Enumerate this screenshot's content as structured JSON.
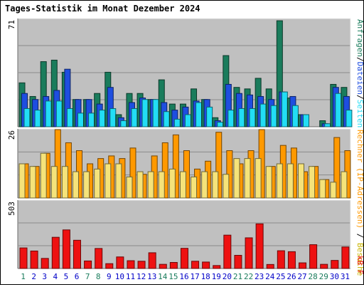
{
  "chart_data": [
    {
      "type": "bar",
      "title": "Tages-Statistik im Monat Dezember 2024",
      "ymax_label": "71",
      "ylabel_parts": [
        "Anfragen",
        "/",
        "Dateien",
        "/",
        "Seiten"
      ],
      "categories": [
        "1",
        "2",
        "3",
        "4",
        "5",
        "6",
        "7",
        "8",
        "9",
        "10",
        "11",
        "12",
        "13",
        "14",
        "15",
        "16",
        "17",
        "18",
        "19",
        "20",
        "21",
        "22",
        "23",
        "24",
        "25",
        "26",
        "27",
        "28",
        "29",
        "30",
        "31"
      ],
      "weekend_days": [
        "1",
        "7",
        "8",
        "14",
        "15",
        "21",
        "22",
        "28",
        "29"
      ],
      "ylim": [
        0,
        71
      ],
      "grid": true,
      "series": [
        {
          "name": "Anfragen",
          "color": "#1a7c5c",
          "values": [
            29,
            20,
            43,
            44,
            36,
            18,
            18,
            22,
            36,
            8,
            22,
            22,
            18,
            31,
            15,
            15,
            25,
            18,
            6,
            47,
            26,
            25,
            32,
            25,
            70,
            19,
            8,
            0,
            4,
            28,
            26
          ]
        },
        {
          "name": "Dateien",
          "color": "#1e4ee0",
          "values": [
            22,
            18,
            20,
            24,
            38,
            18,
            18,
            15,
            26,
            6,
            16,
            19,
            18,
            16,
            11,
            13,
            17,
            18,
            4,
            28,
            22,
            21,
            20,
            18,
            23,
            20,
            8,
            0,
            2,
            26,
            20
          ]
        },
        {
          "name": "Seiten",
          "color": "#22ddf5",
          "values": [
            12,
            11,
            17,
            17,
            12,
            9,
            9,
            11,
            12,
            4,
            12,
            18,
            18,
            10,
            5,
            8,
            16,
            13,
            3,
            11,
            12,
            12,
            15,
            14,
            23,
            14,
            8,
            0,
            2,
            22,
            11
          ]
        }
      ]
    },
    {
      "type": "bar",
      "ymax_label": "26",
      "ylabel_parts": [
        "Rechner (IP-Adressen)",
        " / ",
        "Besuche"
      ],
      "ylim": [
        0,
        26
      ],
      "grid": true,
      "series": [
        {
          "name": "Rechner (IP-Adressen)",
          "color": "#ff9900",
          "values": [
            13,
            12,
            17,
            26,
            21,
            18,
            13,
            15,
            16,
            15,
            19,
            9,
            16,
            21,
            24,
            18,
            11,
            14,
            25,
            18,
            13,
            18,
            26,
            12,
            20,
            19,
            10,
            12,
            7,
            23,
            18
          ]
        },
        {
          "name": "Besuche",
          "color": "#f5e37a",
          "values": [
            13,
            12,
            17,
            12,
            12,
            10,
            10,
            11,
            13,
            13,
            8,
            10,
            10,
            10,
            11,
            10,
            8,
            10,
            10,
            9,
            15,
            15,
            15,
            12,
            13,
            13,
            13,
            12,
            7,
            6,
            10
          ]
        }
      ]
    },
    {
      "type": "bar",
      "ymax_label": "503",
      "ylabel_parts": [
        "kB F"
      ],
      "ylim": [
        0,
        503
      ],
      "grid": true,
      "series": [
        {
          "name": "kB F",
          "color": "#ee1111",
          "values": [
            153,
            130,
            75,
            232,
            287,
            210,
            56,
            149,
            36,
            86,
            58,
            54,
            117,
            31,
            45,
            150,
            54,
            48,
            22,
            248,
            98,
            228,
            332,
            30,
            132,
            125,
            42,
            177,
            31,
            60,
            160
          ]
        }
      ]
    }
  ],
  "colors": {
    "title": "#0000c8",
    "border_dark": "#6b6b6b",
    "background": "#c0c0c0",
    "weekend_label": "#1a7c5c",
    "weekday_label": "#0000c8"
  }
}
